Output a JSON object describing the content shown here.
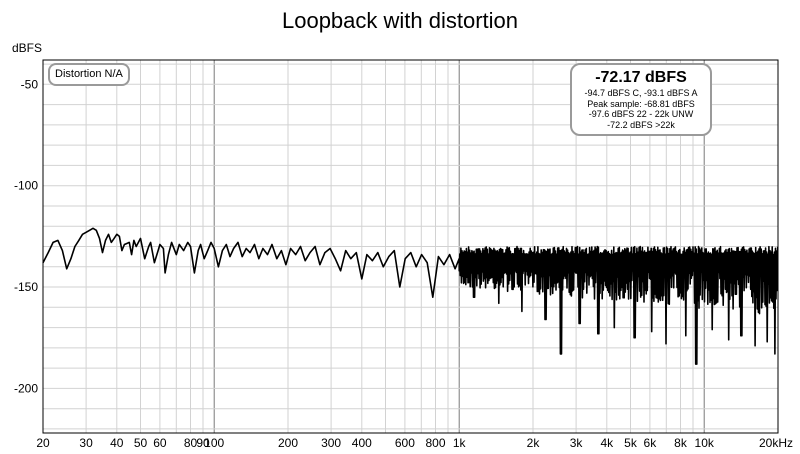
{
  "chart_data": {
    "type": "line",
    "title": "Loopback with distortion",
    "ylabel": "dBFS",
    "xlabel": "",
    "x_scale": "log",
    "xlim": [
      20,
      20000
    ],
    "ylim": [
      -222,
      -38
    ],
    "grid": true,
    "x_ticks": [
      {
        "v": 20,
        "t": "20"
      },
      {
        "v": 30,
        "t": "30"
      },
      {
        "v": 40,
        "t": "40"
      },
      {
        "v": 50,
        "t": "50"
      },
      {
        "v": 60,
        "t": "60"
      },
      {
        "v": 80,
        "t": "80"
      },
      {
        "v": 90,
        "t": "90"
      },
      {
        "v": 100,
        "t": "100"
      },
      {
        "v": 200,
        "t": "200"
      },
      {
        "v": 300,
        "t": "300"
      },
      {
        "v": 400,
        "t": "400"
      },
      {
        "v": 600,
        "t": "600"
      },
      {
        "v": 800,
        "t": "800"
      },
      {
        "v": 1000,
        "t": "1k"
      },
      {
        "v": 2000,
        "t": "2k"
      },
      {
        "v": 3000,
        "t": "3k"
      },
      {
        "v": 4000,
        "t": "4k"
      },
      {
        "v": 5000,
        "t": "5k"
      },
      {
        "v": 6000,
        "t": "6k"
      },
      {
        "v": 8000,
        "t": "8k"
      },
      {
        "v": 10000,
        "t": "10k"
      },
      {
        "v": 20000,
        "t": "20kHz"
      }
    ],
    "y_ticks": [
      {
        "v": -50,
        "t": "-50"
      },
      {
        "v": -100,
        "t": "-100"
      },
      {
        "v": -150,
        "t": "-150"
      },
      {
        "v": -200,
        "t": "-200"
      }
    ],
    "series": [
      {
        "color": "#000000",
        "points": [
          [
            20,
            -138
          ],
          [
            21,
            -133
          ],
          [
            22,
            -128
          ],
          [
            23,
            -127
          ],
          [
            24,
            -132
          ],
          [
            25,
            -141
          ],
          [
            26,
            -136
          ],
          [
            27,
            -130
          ],
          [
            28,
            -127
          ],
          [
            29,
            -124
          ],
          [
            30,
            -123
          ],
          [
            31,
            -122
          ],
          [
            32,
            -121
          ],
          [
            33,
            -122
          ],
          [
            34,
            -126
          ],
          [
            35,
            -133
          ],
          [
            36,
            -127
          ],
          [
            37,
            -124
          ],
          [
            38,
            -128
          ],
          [
            39,
            -126
          ],
          [
            40,
            -124
          ],
          [
            41,
            -125
          ],
          [
            42,
            -132
          ],
          [
            43,
            -129
          ],
          [
            45,
            -128
          ],
          [
            46,
            -134
          ],
          [
            47,
            -127
          ],
          [
            48,
            -130
          ],
          [
            50,
            -126
          ],
          [
            52,
            -136
          ],
          [
            54,
            -130
          ],
          [
            55,
            -128
          ],
          [
            57,
            -138
          ],
          [
            59,
            -132
          ],
          [
            60,
            -129
          ],
          [
            62,
            -131
          ],
          [
            63,
            -143
          ],
          [
            65,
            -134
          ],
          [
            67,
            -128
          ],
          [
            70,
            -134
          ],
          [
            72,
            -129
          ],
          [
            75,
            -132
          ],
          [
            78,
            -128
          ],
          [
            80,
            -130
          ],
          [
            83,
            -143
          ],
          [
            86,
            -132
          ],
          [
            88,
            -129
          ],
          [
            91,
            -136
          ],
          [
            94,
            -132
          ],
          [
            97,
            -128
          ],
          [
            100,
            -131
          ],
          [
            104,
            -140
          ],
          [
            108,
            -132
          ],
          [
            112,
            -129
          ],
          [
            116,
            -135
          ],
          [
            120,
            -131
          ],
          [
            125,
            -128
          ],
          [
            130,
            -135
          ],
          [
            135,
            -131
          ],
          [
            140,
            -133
          ],
          [
            146,
            -129
          ],
          [
            152,
            -136
          ],
          [
            158,
            -131
          ],
          [
            165,
            -134
          ],
          [
            172,
            -129
          ],
          [
            180,
            -136
          ],
          [
            188,
            -132
          ],
          [
            196,
            -139
          ],
          [
            205,
            -131
          ],
          [
            215,
            -134
          ],
          [
            225,
            -130
          ],
          [
            235,
            -137
          ],
          [
            246,
            -133
          ],
          [
            258,
            -130
          ],
          [
            270,
            -139
          ],
          [
            283,
            -133
          ],
          [
            297,
            -131
          ],
          [
            312,
            -136
          ],
          [
            328,
            -142
          ],
          [
            344,
            -132
          ],
          [
            361,
            -136
          ],
          [
            380,
            -133
          ],
          [
            400,
            -146
          ],
          [
            420,
            -134
          ],
          [
            442,
            -137
          ],
          [
            465,
            -133
          ],
          [
            490,
            -140
          ],
          [
            516,
            -135
          ],
          [
            543,
            -132
          ],
          [
            572,
            -150
          ],
          [
            602,
            -136
          ],
          [
            634,
            -133
          ],
          [
            667,
            -140
          ],
          [
            702,
            -134
          ],
          [
            740,
            -138
          ],
          [
            780,
            -155
          ],
          [
            822,
            -135
          ],
          [
            866,
            -139
          ],
          [
            913,
            -134
          ],
          [
            962,
            -141
          ],
          [
            1000,
            -136
          ]
        ]
      }
    ],
    "noise": {
      "from_hz": 1000,
      "to_hz": 20000,
      "top_dbfs": -130,
      "floor_dbfs": -146,
      "dips_dbfs": [
        [
          1150,
          -155
        ],
        [
          1450,
          -158
        ],
        [
          1800,
          -162
        ],
        [
          2250,
          -166
        ],
        [
          2600,
          -183
        ],
        [
          3100,
          -168
        ],
        [
          3700,
          -173
        ],
        [
          4300,
          -170
        ],
        [
          5200,
          -175
        ],
        [
          6100,
          -172
        ],
        [
          7000,
          -178
        ],
        [
          8400,
          -174
        ],
        [
          9300,
          -188
        ],
        [
          10800,
          -171
        ],
        [
          12600,
          -176
        ],
        [
          14200,
          -174
        ],
        [
          16100,
          -179
        ],
        [
          18100,
          -177
        ],
        [
          19400,
          -183
        ]
      ]
    }
  },
  "distortion_box": {
    "label": "Distortion N/A"
  },
  "measurement_box": {
    "main": "-72.17 dBFS",
    "lines": [
      "-94.7 dBFS C, -93.1 dBFS A",
      "Peak sample: -68.81 dBFS",
      "-97.6 dBFS 22 - 22k UNW",
      "-72.2 dBFS >22k"
    ]
  }
}
